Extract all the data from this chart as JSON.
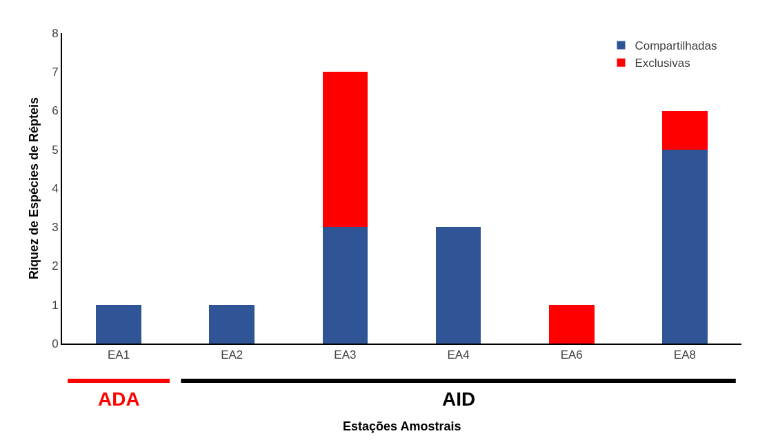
{
  "chart_data": {
    "type": "bar",
    "stacked": true,
    "xlabel": "Estações Amostrais",
    "ylabel": "Riquez de Espécies de Répteis",
    "categories": [
      "EA1",
      "EA2",
      "EA3",
      "EA4",
      "EA6",
      "EA8"
    ],
    "series": [
      {
        "name": "Compartilhadas",
        "color": "#2f5597",
        "values": [
          1,
          1,
          3,
          3,
          0,
          5
        ]
      },
      {
        "name": "Exclusivas",
        "color": "#ff0000",
        "values": [
          0,
          0,
          4,
          0,
          1,
          1
        ]
      }
    ],
    "ylim": [
      0,
      8
    ],
    "yticks": [
      0,
      1,
      2,
      3,
      4,
      5,
      6,
      7,
      8
    ],
    "legend": "top right",
    "annotations": [
      "ADA",
      "AID"
    ]
  }
}
